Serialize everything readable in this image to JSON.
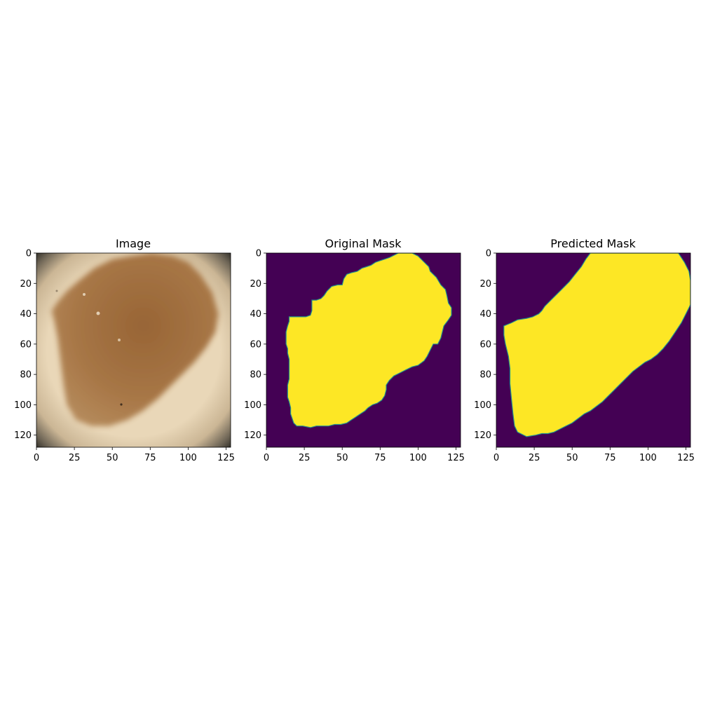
{
  "chart_data": [
    {
      "type": "heatmap",
      "panel": "image",
      "title": "Image",
      "xlim": [
        0,
        128
      ],
      "ylim": [
        128,
        0
      ],
      "xticks": [
        0,
        25,
        50,
        75,
        100,
        125
      ],
      "yticks": [
        0,
        20,
        40,
        60,
        80,
        100,
        120
      ],
      "description_colors": {
        "skin": "#e8d6b6",
        "lesion": "#a26e3e",
        "lesion_dark": "#8a5a2e",
        "vignette": "#2a2a24"
      },
      "lesion_outline": [
        [
          10,
          38
        ],
        [
          14,
          32
        ],
        [
          20,
          25
        ],
        [
          28,
          18
        ],
        [
          38,
          10
        ],
        [
          50,
          4
        ],
        [
          62,
          2
        ],
        [
          76,
          0
        ],
        [
          90,
          2
        ],
        [
          100,
          6
        ],
        [
          108,
          14
        ],
        [
          116,
          26
        ],
        [
          120,
          40
        ],
        [
          118,
          52
        ],
        [
          112,
          62
        ],
        [
          104,
          72
        ],
        [
          96,
          80
        ],
        [
          88,
          88
        ],
        [
          80,
          96
        ],
        [
          70,
          104
        ],
        [
          60,
          110
        ],
        [
          48,
          114
        ],
        [
          36,
          114
        ],
        [
          26,
          110
        ],
        [
          20,
          100
        ],
        [
          18,
          88
        ],
        [
          16,
          72
        ],
        [
          14,
          56
        ],
        [
          12,
          46
        ]
      ]
    },
    {
      "type": "heatmap",
      "panel": "original-mask",
      "title": "Original Mask",
      "xlim": [
        0,
        128
      ],
      "ylim": [
        128,
        0
      ],
      "xticks": [
        0,
        25,
        50,
        75,
        100,
        125
      ],
      "yticks": [
        0,
        20,
        40,
        60,
        80,
        100,
        120
      ],
      "colormap": {
        "background": "#440154",
        "foreground": "#fde725",
        "edge": "#21918c"
      },
      "mask_outline": [
        [
          87,
          0
        ],
        [
          96,
          0
        ],
        [
          100,
          2
        ],
        [
          104,
          6
        ],
        [
          107,
          9
        ],
        [
          108,
          12
        ],
        [
          112,
          16
        ],
        [
          115,
          21
        ],
        [
          118,
          24
        ],
        [
          119,
          28
        ],
        [
          120,
          33
        ],
        [
          122,
          36
        ],
        [
          122,
          41
        ],
        [
          120,
          44
        ],
        [
          117,
          48
        ],
        [
          116,
          52
        ],
        [
          115,
          56
        ],
        [
          113,
          60
        ],
        [
          110,
          60
        ],
        [
          108,
          64
        ],
        [
          106,
          68
        ],
        [
          104,
          71
        ],
        [
          100,
          74
        ],
        [
          96,
          75
        ],
        [
          92,
          77
        ],
        [
          88,
          79
        ],
        [
          84,
          81
        ],
        [
          81,
          84
        ],
        [
          79,
          87
        ],
        [
          79,
          90
        ],
        [
          78,
          94
        ],
        [
          76,
          97
        ],
        [
          73,
          99
        ],
        [
          70,
          100
        ],
        [
          67,
          102
        ],
        [
          65,
          104
        ],
        [
          62,
          106
        ],
        [
          59,
          108
        ],
        [
          56,
          110
        ],
        [
          53,
          112
        ],
        [
          49,
          113
        ],
        [
          45,
          113
        ],
        [
          41,
          114
        ],
        [
          37,
          114
        ],
        [
          33,
          114
        ],
        [
          29,
          115
        ],
        [
          24,
          114
        ],
        [
          20,
          114
        ],
        [
          18,
          112
        ],
        [
          17,
          109
        ],
        [
          16,
          106
        ],
        [
          16,
          102
        ],
        [
          15,
          98
        ],
        [
          14,
          95
        ],
        [
          14,
          91
        ],
        [
          14,
          87
        ],
        [
          15,
          83
        ],
        [
          15,
          78
        ],
        [
          15,
          74
        ],
        [
          15,
          70
        ],
        [
          14,
          66
        ],
        [
          14,
          63
        ],
        [
          13,
          60
        ],
        [
          13,
          56
        ],
        [
          13,
          52
        ],
        [
          14,
          48
        ],
        [
          15,
          45
        ],
        [
          15,
          42
        ],
        [
          18,
          42
        ],
        [
          22,
          42
        ],
        [
          26,
          42
        ],
        [
          29,
          41
        ],
        [
          30,
          38
        ],
        [
          30,
          34
        ],
        [
          30,
          31
        ],
        [
          33,
          31
        ],
        [
          36,
          30
        ],
        [
          38,
          28
        ],
        [
          40,
          25
        ],
        [
          43,
          22
        ],
        [
          47,
          21
        ],
        [
          50,
          21
        ],
        [
          51,
          17
        ],
        [
          53,
          14
        ],
        [
          56,
          13
        ],
        [
          60,
          12
        ],
        [
          63,
          10
        ],
        [
          66,
          9
        ],
        [
          69,
          8
        ],
        [
          72,
          6
        ],
        [
          75,
          5
        ],
        [
          78,
          4
        ],
        [
          81,
          3
        ],
        [
          83,
          2
        ],
        [
          85,
          1
        ]
      ]
    },
    {
      "type": "heatmap",
      "panel": "predicted-mask",
      "title": "Predicted Mask",
      "xlim": [
        0,
        128
      ],
      "ylim": [
        128,
        0
      ],
      "xticks": [
        0,
        25,
        50,
        75,
        100,
        125
      ],
      "yticks": [
        0,
        20,
        40,
        60,
        80,
        100,
        120
      ],
      "colormap": {
        "background": "#440154",
        "foreground": "#fde725",
        "edge": "#21918c"
      },
      "mask_outline": [
        [
          62,
          0
        ],
        [
          120,
          0
        ],
        [
          124,
          6
        ],
        [
          127,
          12
        ],
        [
          128,
          18
        ],
        [
          128,
          34
        ],
        [
          125,
          40
        ],
        [
          122,
          46
        ],
        [
          118,
          52
        ],
        [
          114,
          58
        ],
        [
          110,
          63
        ],
        [
          106,
          67
        ],
        [
          102,
          70
        ],
        [
          98,
          72
        ],
        [
          94,
          75
        ],
        [
          90,
          78
        ],
        [
          86,
          82
        ],
        [
          82,
          86
        ],
        [
          78,
          90
        ],
        [
          74,
          94
        ],
        [
          70,
          98
        ],
        [
          66,
          101
        ],
        [
          62,
          104
        ],
        [
          58,
          106
        ],
        [
          54,
          109
        ],
        [
          50,
          112
        ],
        [
          46,
          114
        ],
        [
          42,
          116
        ],
        [
          38,
          118
        ],
        [
          34,
          119
        ],
        [
          30,
          119
        ],
        [
          26,
          120
        ],
        [
          20,
          121
        ],
        [
          14,
          118
        ],
        [
          12,
          114
        ],
        [
          11,
          106
        ],
        [
          10,
          96
        ],
        [
          9,
          86
        ],
        [
          9,
          76
        ],
        [
          8,
          68
        ],
        [
          6,
          60
        ],
        [
          5,
          54
        ],
        [
          5,
          48
        ],
        [
          10,
          46
        ],
        [
          14,
          44
        ],
        [
          20,
          43
        ],
        [
          24,
          42
        ],
        [
          28,
          40
        ],
        [
          30,
          38
        ],
        [
          32,
          35
        ],
        [
          36,
          31
        ],
        [
          40,
          27
        ],
        [
          44,
          23
        ],
        [
          48,
          19
        ],
        [
          52,
          14
        ],
        [
          56,
          9
        ],
        [
          59,
          4
        ]
      ]
    }
  ]
}
